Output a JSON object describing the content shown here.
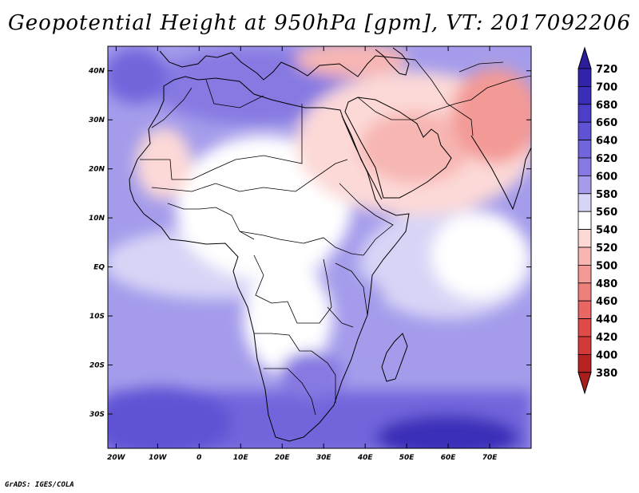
{
  "title": "Geopotential Height at 950hPa [gpm], VT: 2017092206",
  "credit": "GrADS: IGES/COLA",
  "map": {
    "lon_range": [
      -22,
      80
    ],
    "lat_range": [
      -37,
      45
    ],
    "lon_ticks": [
      {
        "value": -20,
        "label": "20W"
      },
      {
        "value": -10,
        "label": "10W"
      },
      {
        "value": 0,
        "label": "0"
      },
      {
        "value": 10,
        "label": "10E"
      },
      {
        "value": 20,
        "label": "20E"
      },
      {
        "value": 30,
        "label": "30E"
      },
      {
        "value": 40,
        "label": "40E"
      },
      {
        "value": 50,
        "label": "50E"
      },
      {
        "value": 60,
        "label": "60E"
      },
      {
        "value": 70,
        "label": "70E"
      }
    ],
    "lat_ticks": [
      {
        "value": 40,
        "label": "40N"
      },
      {
        "value": 30,
        "label": "30N"
      },
      {
        "value": 20,
        "label": "20N"
      },
      {
        "value": 10,
        "label": "10N"
      },
      {
        "value": 0,
        "label": "EQ"
      },
      {
        "value": -10,
        "label": "10S"
      },
      {
        "value": -20,
        "label": "20S"
      },
      {
        "value": -30,
        "label": "30S"
      }
    ]
  },
  "colorbar": {
    "levels": [
      {
        "label": "720",
        "color": "#2c1d9c"
      },
      {
        "label": "700",
        "color": "#3224aa"
      },
      {
        "label": "680",
        "color": "#3a2eb8"
      },
      {
        "label": "660",
        "color": "#4c3ec8"
      },
      {
        "label": "640",
        "color": "#5f52d4"
      },
      {
        "label": "620",
        "color": "#7265dc"
      },
      {
        "label": "600",
        "color": "#8679e2"
      },
      {
        "label": "580",
        "color": "#a49ceb"
      },
      {
        "label": "560",
        "color": "#d7d5f6"
      },
      {
        "label": "540",
        "color": "#ffffff"
      },
      {
        "label": "520",
        "color": "#fcd9d7"
      },
      {
        "label": "500",
        "color": "#f7b6b2"
      },
      {
        "label": "480",
        "color": "#f39a96"
      },
      {
        "label": "460",
        "color": "#ee807c"
      },
      {
        "label": "440",
        "color": "#e86663"
      },
      {
        "label": "420",
        "color": "#e04b4a"
      },
      {
        "label": "400",
        "color": "#d33939"
      },
      {
        "label": "380",
        "color": "#b72222"
      }
    ],
    "bottom_color": "#aa1d1d"
  }
}
